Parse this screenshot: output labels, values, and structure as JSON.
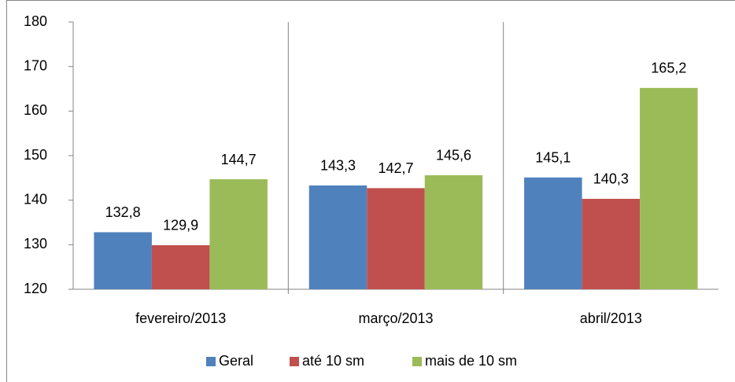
{
  "chart_data": {
    "type": "bar",
    "categories": [
      "fevereiro/2013",
      "março/2013",
      "abril/2013"
    ],
    "series": [
      {
        "name": "Geral",
        "color": "#4f81bd",
        "values": [
          132.8,
          143.3,
          145.1
        ],
        "value_labels": [
          "132,8",
          "143,3",
          "145,1"
        ]
      },
      {
        "name": "até 10 sm",
        "color": "#c0504d",
        "values": [
          129.9,
          142.7,
          140.3
        ],
        "value_labels": [
          "129,9",
          "142,7",
          "140,3"
        ]
      },
      {
        "name": "mais de 10 sm",
        "color": "#9bbb59",
        "values": [
          144.7,
          145.6,
          165.2
        ],
        "value_labels": [
          "144,7",
          "145,6",
          "165,2"
        ]
      }
    ],
    "ylim": [
      120,
      180
    ],
    "yticks": [
      120,
      130,
      140,
      150,
      160,
      170,
      180
    ],
    "legend": "bottom"
  }
}
